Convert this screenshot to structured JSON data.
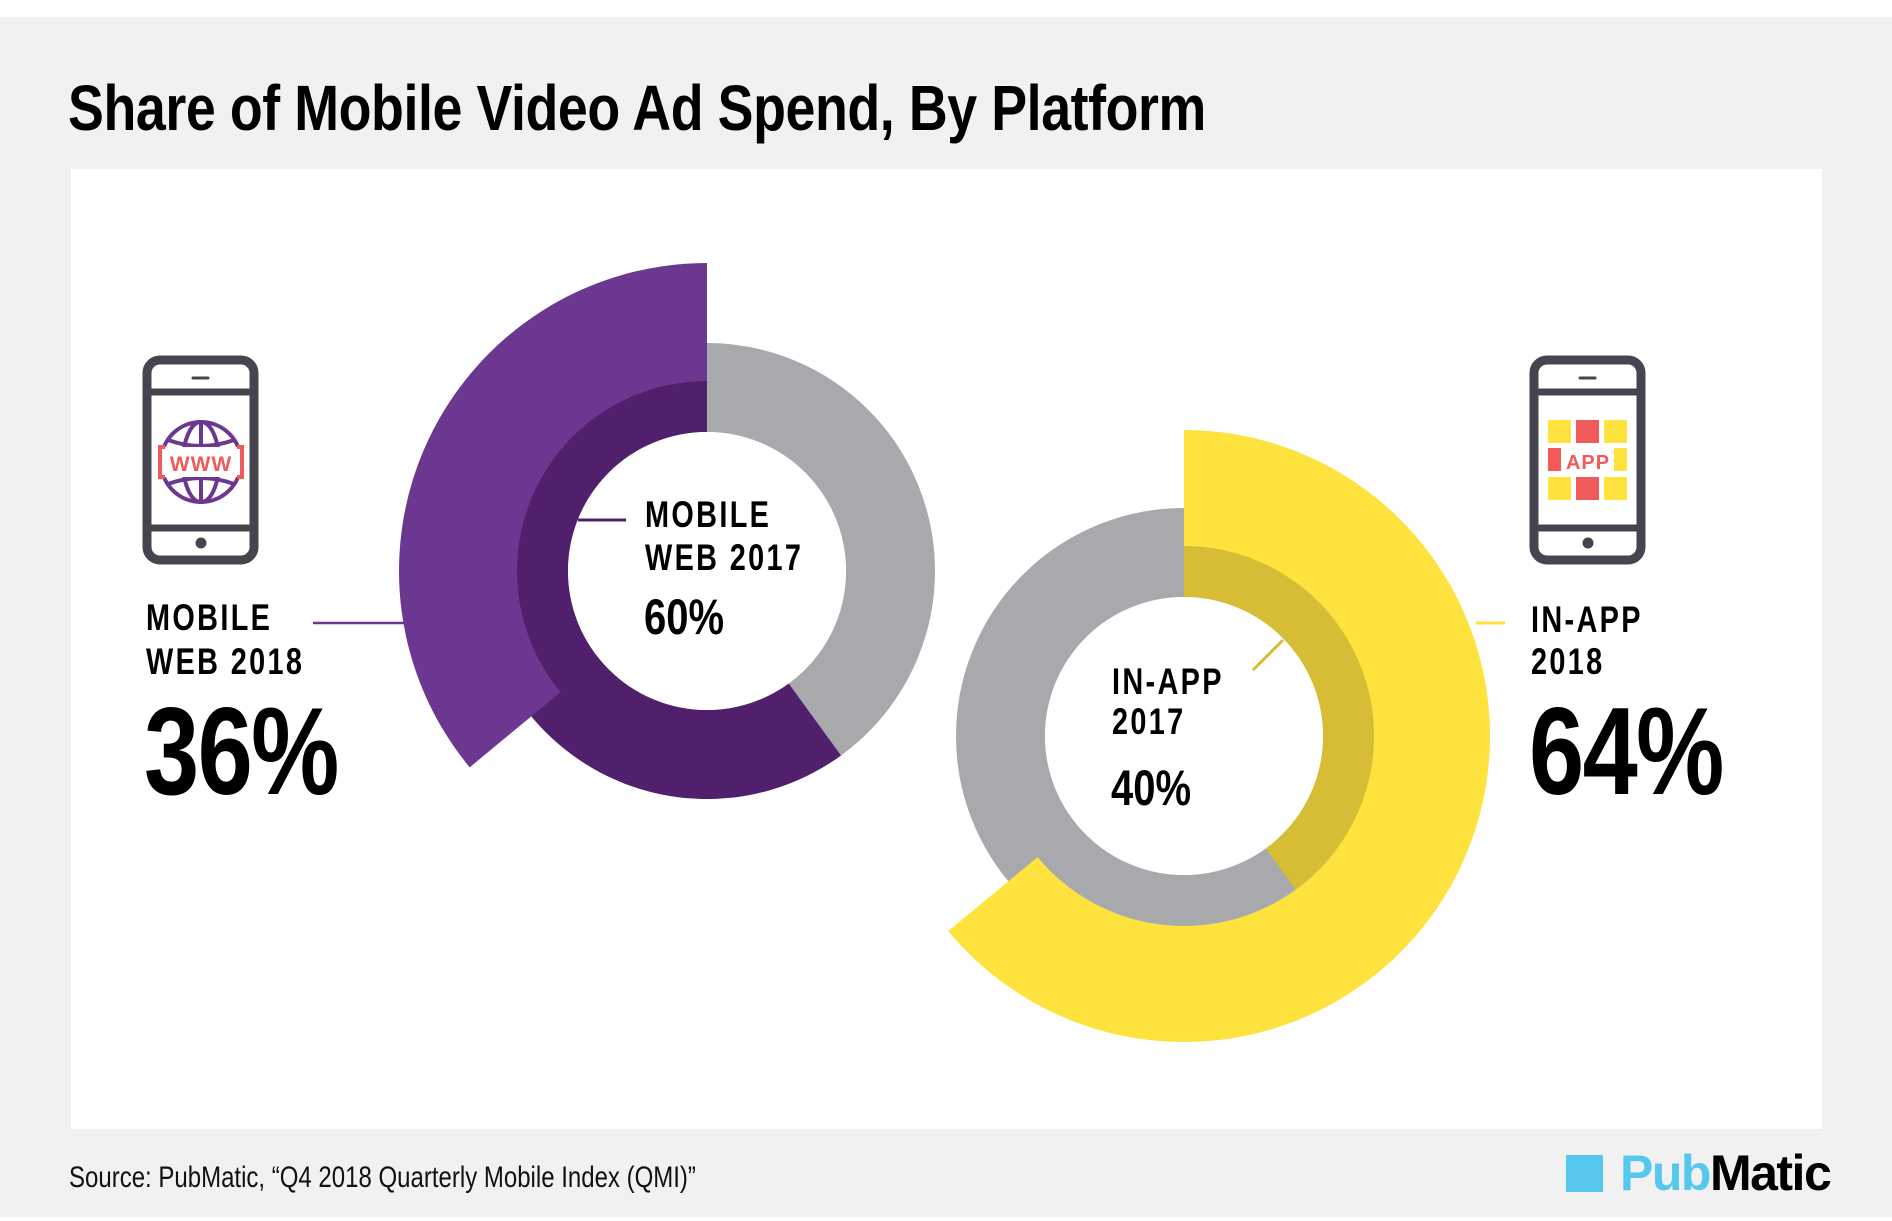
{
  "title": "Share of Mobile Video Ad Spend, By Platform",
  "source": "Source: PubMatic, “Q4 2018 Quarterly Mobile Index (QMI)”",
  "logo": {
    "part1": "Pub",
    "part2": "Matic",
    "icon": "square-logo-icon"
  },
  "colors": {
    "mobile_web_2018": "#6c3790",
    "mobile_web_2017": "#51206d",
    "in_app_2018": "#fee23e",
    "in_app_2017": "#d6bd35",
    "remainder": "#a8a9ad",
    "logo_blue": "#56c8ee",
    "background": "#f1f1f1"
  },
  "left": {
    "icon": "phone-www-icon",
    "icon_text": "WWW",
    "outer_label_line1": "MOBILE",
    "outer_label_line2": "WEB 2018",
    "outer_value": "36%",
    "inner_label_line1": "MOBILE",
    "inner_label_line2": "WEB 2017",
    "inner_value": "60%"
  },
  "right": {
    "icon": "phone-app-icon",
    "icon_text": "APP",
    "outer_label_line1": "IN-APP",
    "outer_label_line2": "2018",
    "outer_value": "64%",
    "inner_label_line1": "IN-APP",
    "inner_label_line2": "2017",
    "inner_value": "40%"
  },
  "chart_data": [
    {
      "type": "pie",
      "title": "Share of Mobile Video Ad Spend, By Platform",
      "subtitle": "Mobile Web",
      "series": [
        {
          "name": "Mobile Web 2018",
          "values": [
            36
          ],
          "ring": "outer"
        },
        {
          "name": "Mobile Web 2017",
          "values": [
            60
          ],
          "ring": "inner"
        }
      ],
      "unit": "%"
    },
    {
      "type": "pie",
      "title": "Share of Mobile Video Ad Spend, By Platform",
      "subtitle": "In-App",
      "series": [
        {
          "name": "In-App 2018",
          "values": [
            64
          ],
          "ring": "outer"
        },
        {
          "name": "In-App 2017",
          "values": [
            40
          ],
          "ring": "inner"
        }
      ],
      "unit": "%"
    }
  ]
}
